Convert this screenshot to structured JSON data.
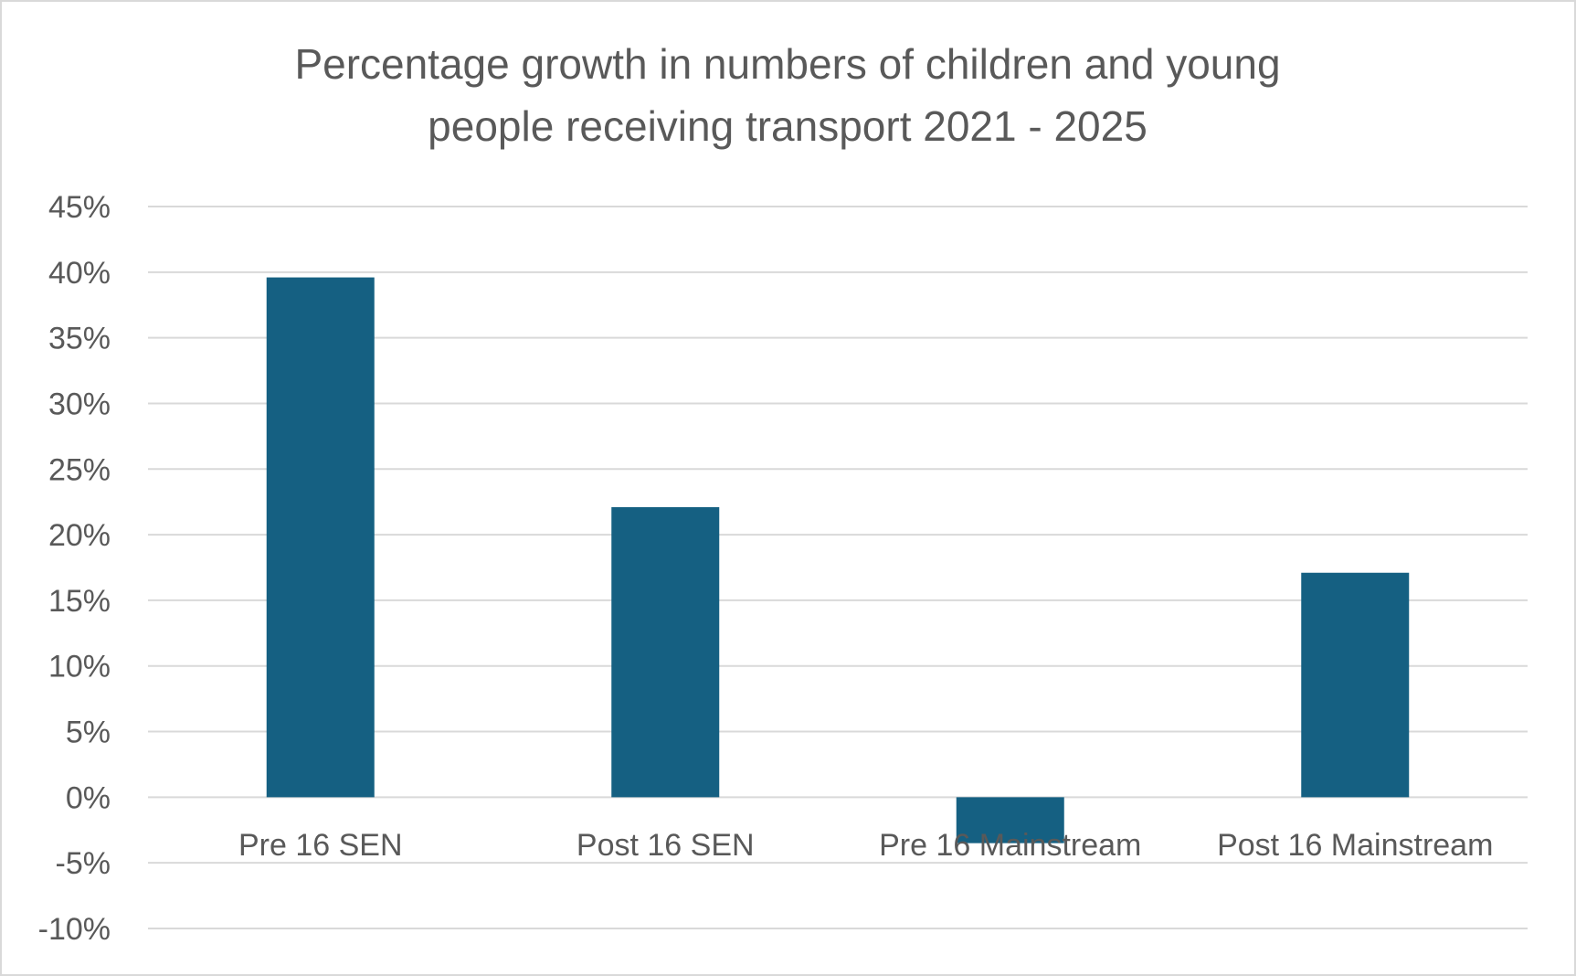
{
  "chart_data": {
    "type": "bar",
    "title_lines": [
      "Percentage growth in numbers of children and young",
      "people receiving transport 2021 - 2025"
    ],
    "categories": [
      "Pre 16 SEN",
      "Post 16 SEN",
      "Pre 16 Mainstream",
      "Post 16 Mainstream"
    ],
    "values": [
      39.6,
      22.1,
      -3.5,
      17.1
    ],
    "ylim": [
      -10,
      45
    ],
    "yticks": [
      45,
      40,
      35,
      30,
      25,
      20,
      15,
      10,
      5,
      0,
      -5,
      -10
    ],
    "ytick_labels": [
      "45%",
      "40%",
      "35%",
      "30%",
      "25%",
      "20%",
      "15%",
      "10%",
      "5%",
      "0%",
      "-5%",
      "-10%"
    ],
    "grid": true,
    "legend": "none",
    "bar_color": "#156082",
    "grid_color": "#d9d9d9",
    "text_color": "#595959"
  }
}
